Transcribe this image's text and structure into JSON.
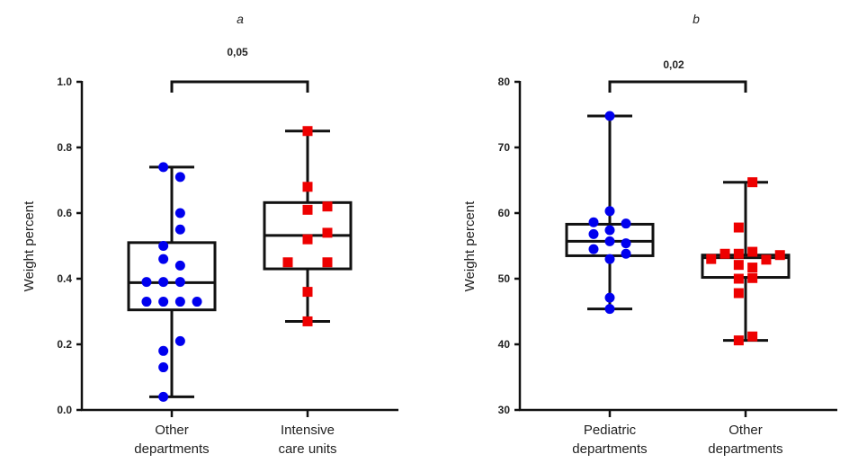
{
  "chart_data": [
    {
      "type": "box",
      "panel_label": "a",
      "title": "",
      "xlabel": "",
      "ylabel": "Weight percent",
      "ylim": [
        0.0,
        1.0
      ],
      "yticks": [
        "0.0",
        "0.2",
        "0.4",
        "0.6",
        "0.8",
        "1.0"
      ],
      "ytick_values": [
        0.0,
        0.2,
        0.4,
        0.6,
        0.8,
        1.0
      ],
      "grid": false,
      "significance": {
        "label": "0,05",
        "between": [
          0,
          1
        ]
      },
      "categories": [
        {
          "label_lines": [
            "Other",
            "departments"
          ]
        },
        {
          "label_lines": [
            "Intensive",
            "care units"
          ]
        }
      ],
      "series": [
        {
          "name": "Other departments",
          "marker": "circle",
          "color": "#0000ee",
          "box": {
            "min": 0.04,
            "q1": 0.305,
            "median": 0.388,
            "q3": 0.51,
            "max": 0.74
          },
          "points": [
            [
              -0.5,
              0.74
            ],
            [
              0.5,
              0.71
            ],
            [
              0.5,
              0.6
            ],
            [
              0.5,
              0.55
            ],
            [
              -0.5,
              0.5
            ],
            [
              -0.5,
              0.46
            ],
            [
              0.5,
              0.44
            ],
            [
              -1.5,
              0.39
            ],
            [
              -0.5,
              0.39
            ],
            [
              0.5,
              0.39
            ],
            [
              -1.5,
              0.33
            ],
            [
              -0.5,
              0.33
            ],
            [
              0.5,
              0.33
            ],
            [
              1.5,
              0.33
            ],
            [
              0.5,
              0.21
            ],
            [
              -0.5,
              0.18
            ],
            [
              -0.5,
              0.13
            ],
            [
              -0.5,
              0.04
            ]
          ]
        },
        {
          "name": "Intensive care units",
          "marker": "square",
          "color": "#ee0000",
          "box": {
            "min": 0.27,
            "q1": 0.43,
            "median": 0.532,
            "q3": 0.632,
            "max": 0.85
          },
          "points": [
            [
              0,
              0.85
            ],
            [
              0,
              0.68
            ],
            [
              0,
              0.61
            ],
            [
              1,
              0.62
            ],
            [
              1,
              0.54
            ],
            [
              0,
              0.52
            ],
            [
              -1,
              0.45
            ],
            [
              1,
              0.45
            ],
            [
              0,
              0.36
            ],
            [
              0,
              0.27
            ]
          ]
        }
      ]
    },
    {
      "type": "box",
      "panel_label": "b",
      "title": "",
      "xlabel": "",
      "ylabel": "Weight percent",
      "ylim": [
        30,
        80
      ],
      "yticks": [
        "30",
        "40",
        "50",
        "60",
        "70",
        "80"
      ],
      "ytick_values": [
        30,
        40,
        50,
        60,
        70,
        80
      ],
      "grid": false,
      "significance": {
        "label": "0,02",
        "between": [
          0,
          1
        ]
      },
      "categories": [
        {
          "label_lines": [
            "Pediatric",
            "departments"
          ]
        },
        {
          "label_lines": [
            "Other",
            "departments"
          ]
        }
      ],
      "series": [
        {
          "name": "Pediatric departments",
          "marker": "circle",
          "color": "#0000ee",
          "box": {
            "min": 45.4,
            "q1": 53.5,
            "median": 55.7,
            "q3": 58.3,
            "max": 74.8
          },
          "points": [
            [
              0,
              74.8
            ],
            [
              0,
              60.3
            ],
            [
              -1,
              58.6
            ],
            [
              1,
              58.4
            ],
            [
              0,
              57.4
            ],
            [
              -1,
              56.8
            ],
            [
              0,
              55.7
            ],
            [
              1,
              55.4
            ],
            [
              -1,
              54.5
            ],
            [
              1,
              53.8
            ],
            [
              0,
              53.0
            ],
            [
              0,
              47.1
            ],
            [
              0,
              45.4
            ]
          ]
        },
        {
          "name": "Other departments",
          "marker": "square",
          "color": "#ee0000",
          "box": {
            "min": 40.6,
            "q1": 50.2,
            "median": 53.2,
            "q3": 53.6,
            "max": 64.7
          },
          "points": [
            [
              0.5,
              64.7
            ],
            [
              -0.5,
              57.8
            ],
            [
              -1.5,
              53.8
            ],
            [
              -0.5,
              53.8
            ],
            [
              0.5,
              54.1
            ],
            [
              2.5,
              53.6
            ],
            [
              -2.5,
              53.0
            ],
            [
              1.5,
              52.9
            ],
            [
              -0.5,
              52.1
            ],
            [
              0.5,
              51.7
            ],
            [
              -0.5,
              50.0
            ],
            [
              0.5,
              50.1
            ],
            [
              -0.5,
              47.8
            ],
            [
              0.5,
              41.2
            ],
            [
              -0.5,
              40.6
            ]
          ]
        }
      ]
    }
  ]
}
